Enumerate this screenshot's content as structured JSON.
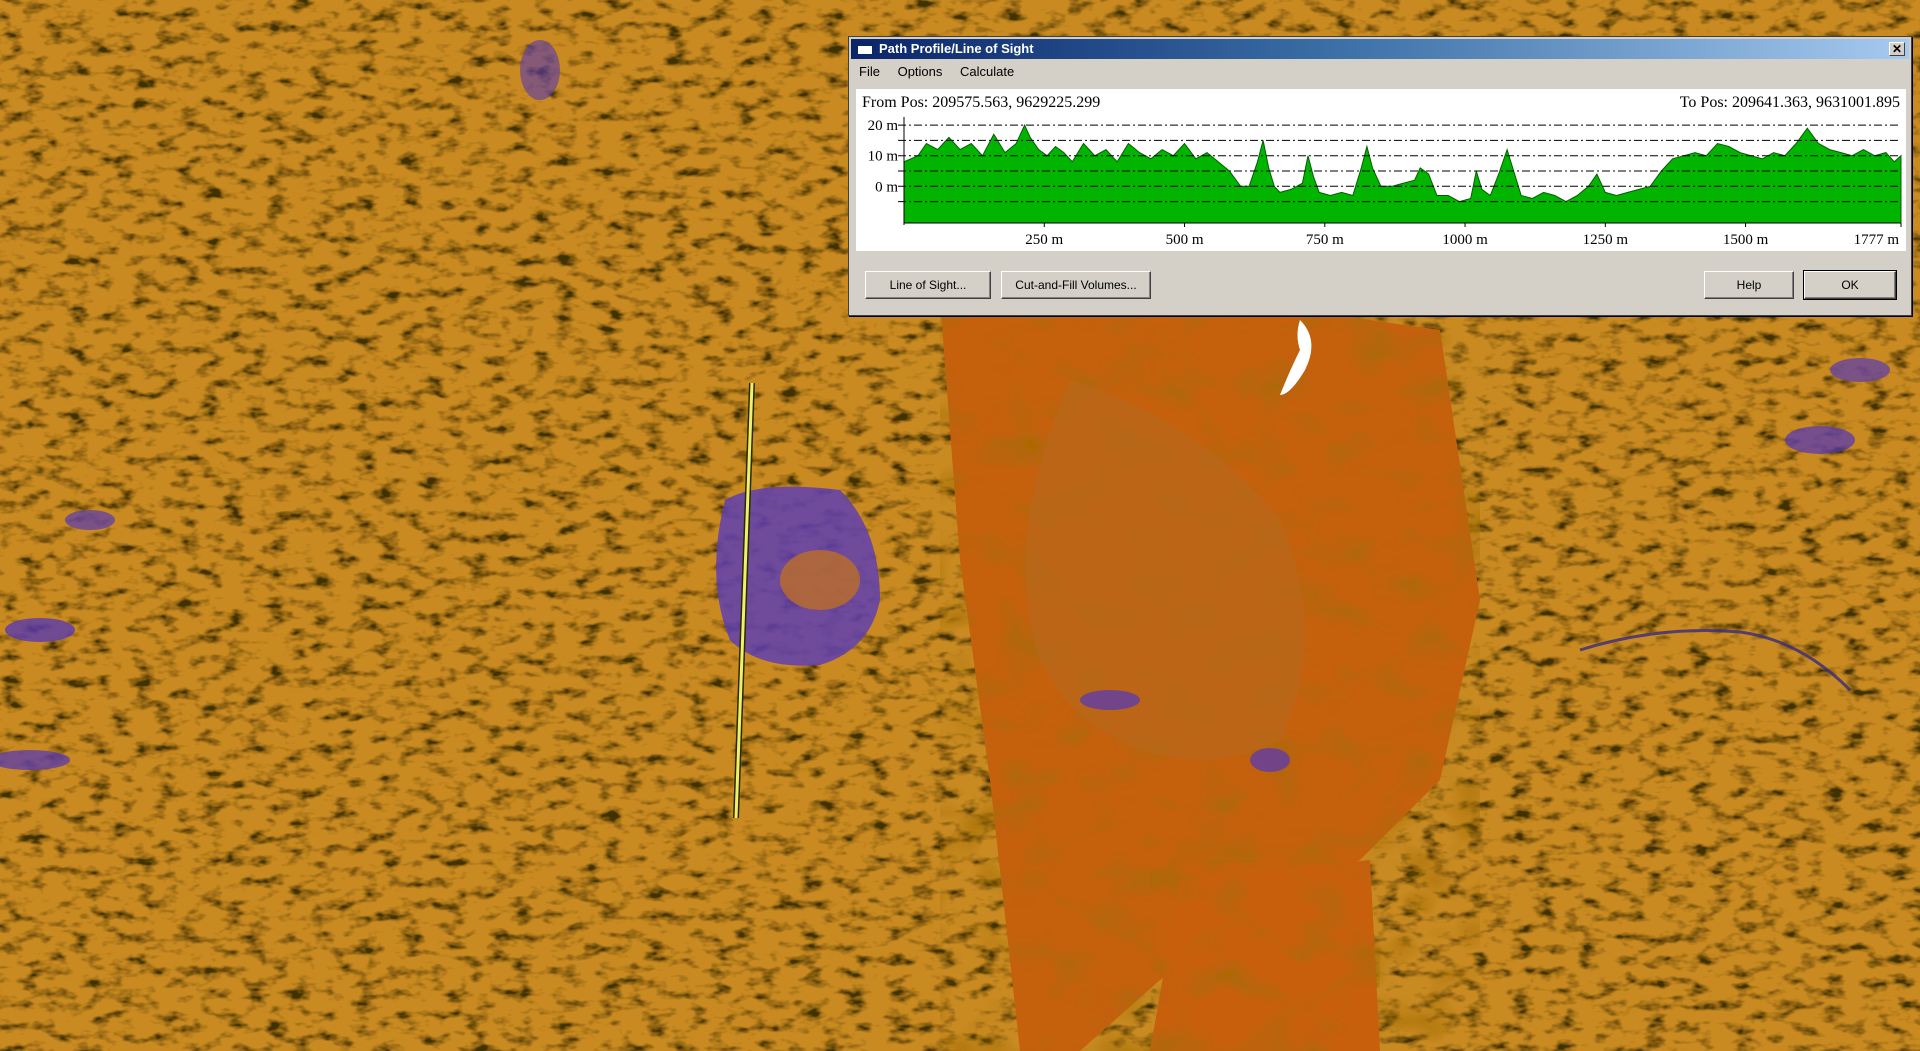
{
  "window": {
    "title": "Path Profile/Line of Sight",
    "close_label": "✕"
  },
  "menu": [
    "File",
    "Options",
    "Calculate"
  ],
  "from_pos": "From Pos: 209575.563, 9629225.299",
  "to_pos": "To Pos: 209641.363, 9631001.895",
  "buttons": {
    "line_of_sight": "Line of Sight...",
    "cut_fill": "Cut-and-Fill Volumes...",
    "help": "Help",
    "ok": "OK"
  },
  "colors": {
    "profile_fill": "#00b400",
    "terrain_base": "#c46a10",
    "terrain_light": "#e0a030",
    "terrain_low": "#5a3ab0",
    "path_line": "#f0f070"
  },
  "chart_data": {
    "type": "area",
    "y_tick_labels": [
      "20 m",
      "10 m",
      "0 m"
    ],
    "y_ticks": [
      20,
      10,
      0
    ],
    "x_tick_labels": [
      "250 m",
      "500 m",
      "750 m",
      "1000 m",
      "1250 m",
      "1500 m",
      "1777 m"
    ],
    "x_ticks": [
      250,
      500,
      750,
      1000,
      1250,
      1500,
      1777
    ],
    "xlim": [
      0,
      1777
    ],
    "ylim": [
      -12,
      22
    ],
    "grid_lines_y": [
      20,
      15,
      10,
      5,
      0,
      -5
    ],
    "x": [
      0,
      25,
      40,
      60,
      80,
      100,
      120,
      140,
      160,
      180,
      200,
      215,
      225,
      240,
      255,
      270,
      285,
      300,
      320,
      340,
      360,
      380,
      400,
      420,
      440,
      460,
      480,
      500,
      520,
      540,
      560,
      580,
      600,
      615,
      630,
      640,
      650,
      660,
      670,
      690,
      710,
      720,
      730,
      740,
      760,
      780,
      800,
      815,
      825,
      835,
      850,
      870,
      890,
      910,
      920,
      935,
      950,
      970,
      990,
      1010,
      1020,
      1030,
      1045,
      1060,
      1075,
      1085,
      1100,
      1120,
      1140,
      1160,
      1180,
      1200,
      1220,
      1235,
      1250,
      1270,
      1290,
      1310,
      1330,
      1350,
      1370,
      1390,
      1410,
      1430,
      1450,
      1470,
      1490,
      1510,
      1530,
      1550,
      1570,
      1590,
      1610,
      1630,
      1650,
      1670,
      1690,
      1710,
      1730,
      1750,
      1765,
      1777
    ],
    "y": [
      8,
      10,
      14,
      12,
      16,
      12,
      14,
      10,
      17,
      11,
      14,
      20,
      16,
      12,
      10,
      13,
      11,
      8,
      14,
      10,
      12,
      8,
      14,
      11,
      9,
      12,
      10,
      14,
      9,
      11,
      8,
      5,
      0,
      0,
      8,
      15,
      6,
      0,
      -2,
      -1,
      1,
      10,
      3,
      -2,
      -3,
      -2,
      -3,
      6,
      13,
      6,
      0,
      0,
      1,
      2,
      6,
      4,
      -3,
      -3,
      -5,
      -4,
      5,
      -1,
      -3,
      4,
      12,
      6,
      -3,
      -4,
      -2,
      -3,
      -5,
      -3,
      0,
      4,
      -2,
      -3,
      -2,
      -1,
      0,
      5,
      9,
      10,
      11,
      10,
      14,
      13,
      11,
      10,
      9,
      11,
      10,
      14,
      19,
      14,
      12,
      11,
      10,
      12,
      10,
      11,
      8,
      10
    ]
  }
}
